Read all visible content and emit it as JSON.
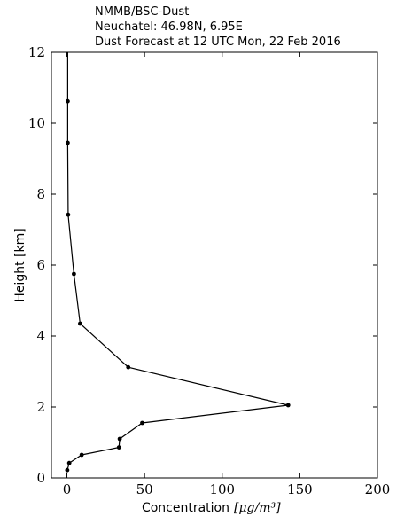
{
  "header": {
    "model": "NMMB/BSC-Dust",
    "location": "Neuchatel: 46.98N, 6.95E",
    "forecast": "Dust Forecast at 12 UTC Mon, 22 Feb 2016"
  },
  "chart_data": {
    "type": "line",
    "xlabel": "Concentration",
    "xlabel_unit": "[μg/m³]",
    "ylabel": "Height [km]",
    "xlim": [
      -10,
      200
    ],
    "ylim": [
      0,
      12
    ],
    "xticks": [
      0,
      50,
      100,
      150,
      200
    ],
    "yticks": [
      0,
      2,
      4,
      6,
      8,
      10,
      12
    ],
    "grid": false,
    "series": [
      {
        "color": "#000000",
        "marker": "circle",
        "x": [
          0.2,
          1.5,
          9.5,
          33.5,
          34,
          48.5,
          142.5,
          39.5,
          8.5,
          4.5,
          0.8,
          0.5,
          0.5
        ],
        "y": [
          0.22,
          0.42,
          0.65,
          0.86,
          1.1,
          1.55,
          2.05,
          3.12,
          4.35,
          5.75,
          7.42,
          9.45,
          10.62
        ]
      }
    ],
    "line_extends_to_top": true
  }
}
